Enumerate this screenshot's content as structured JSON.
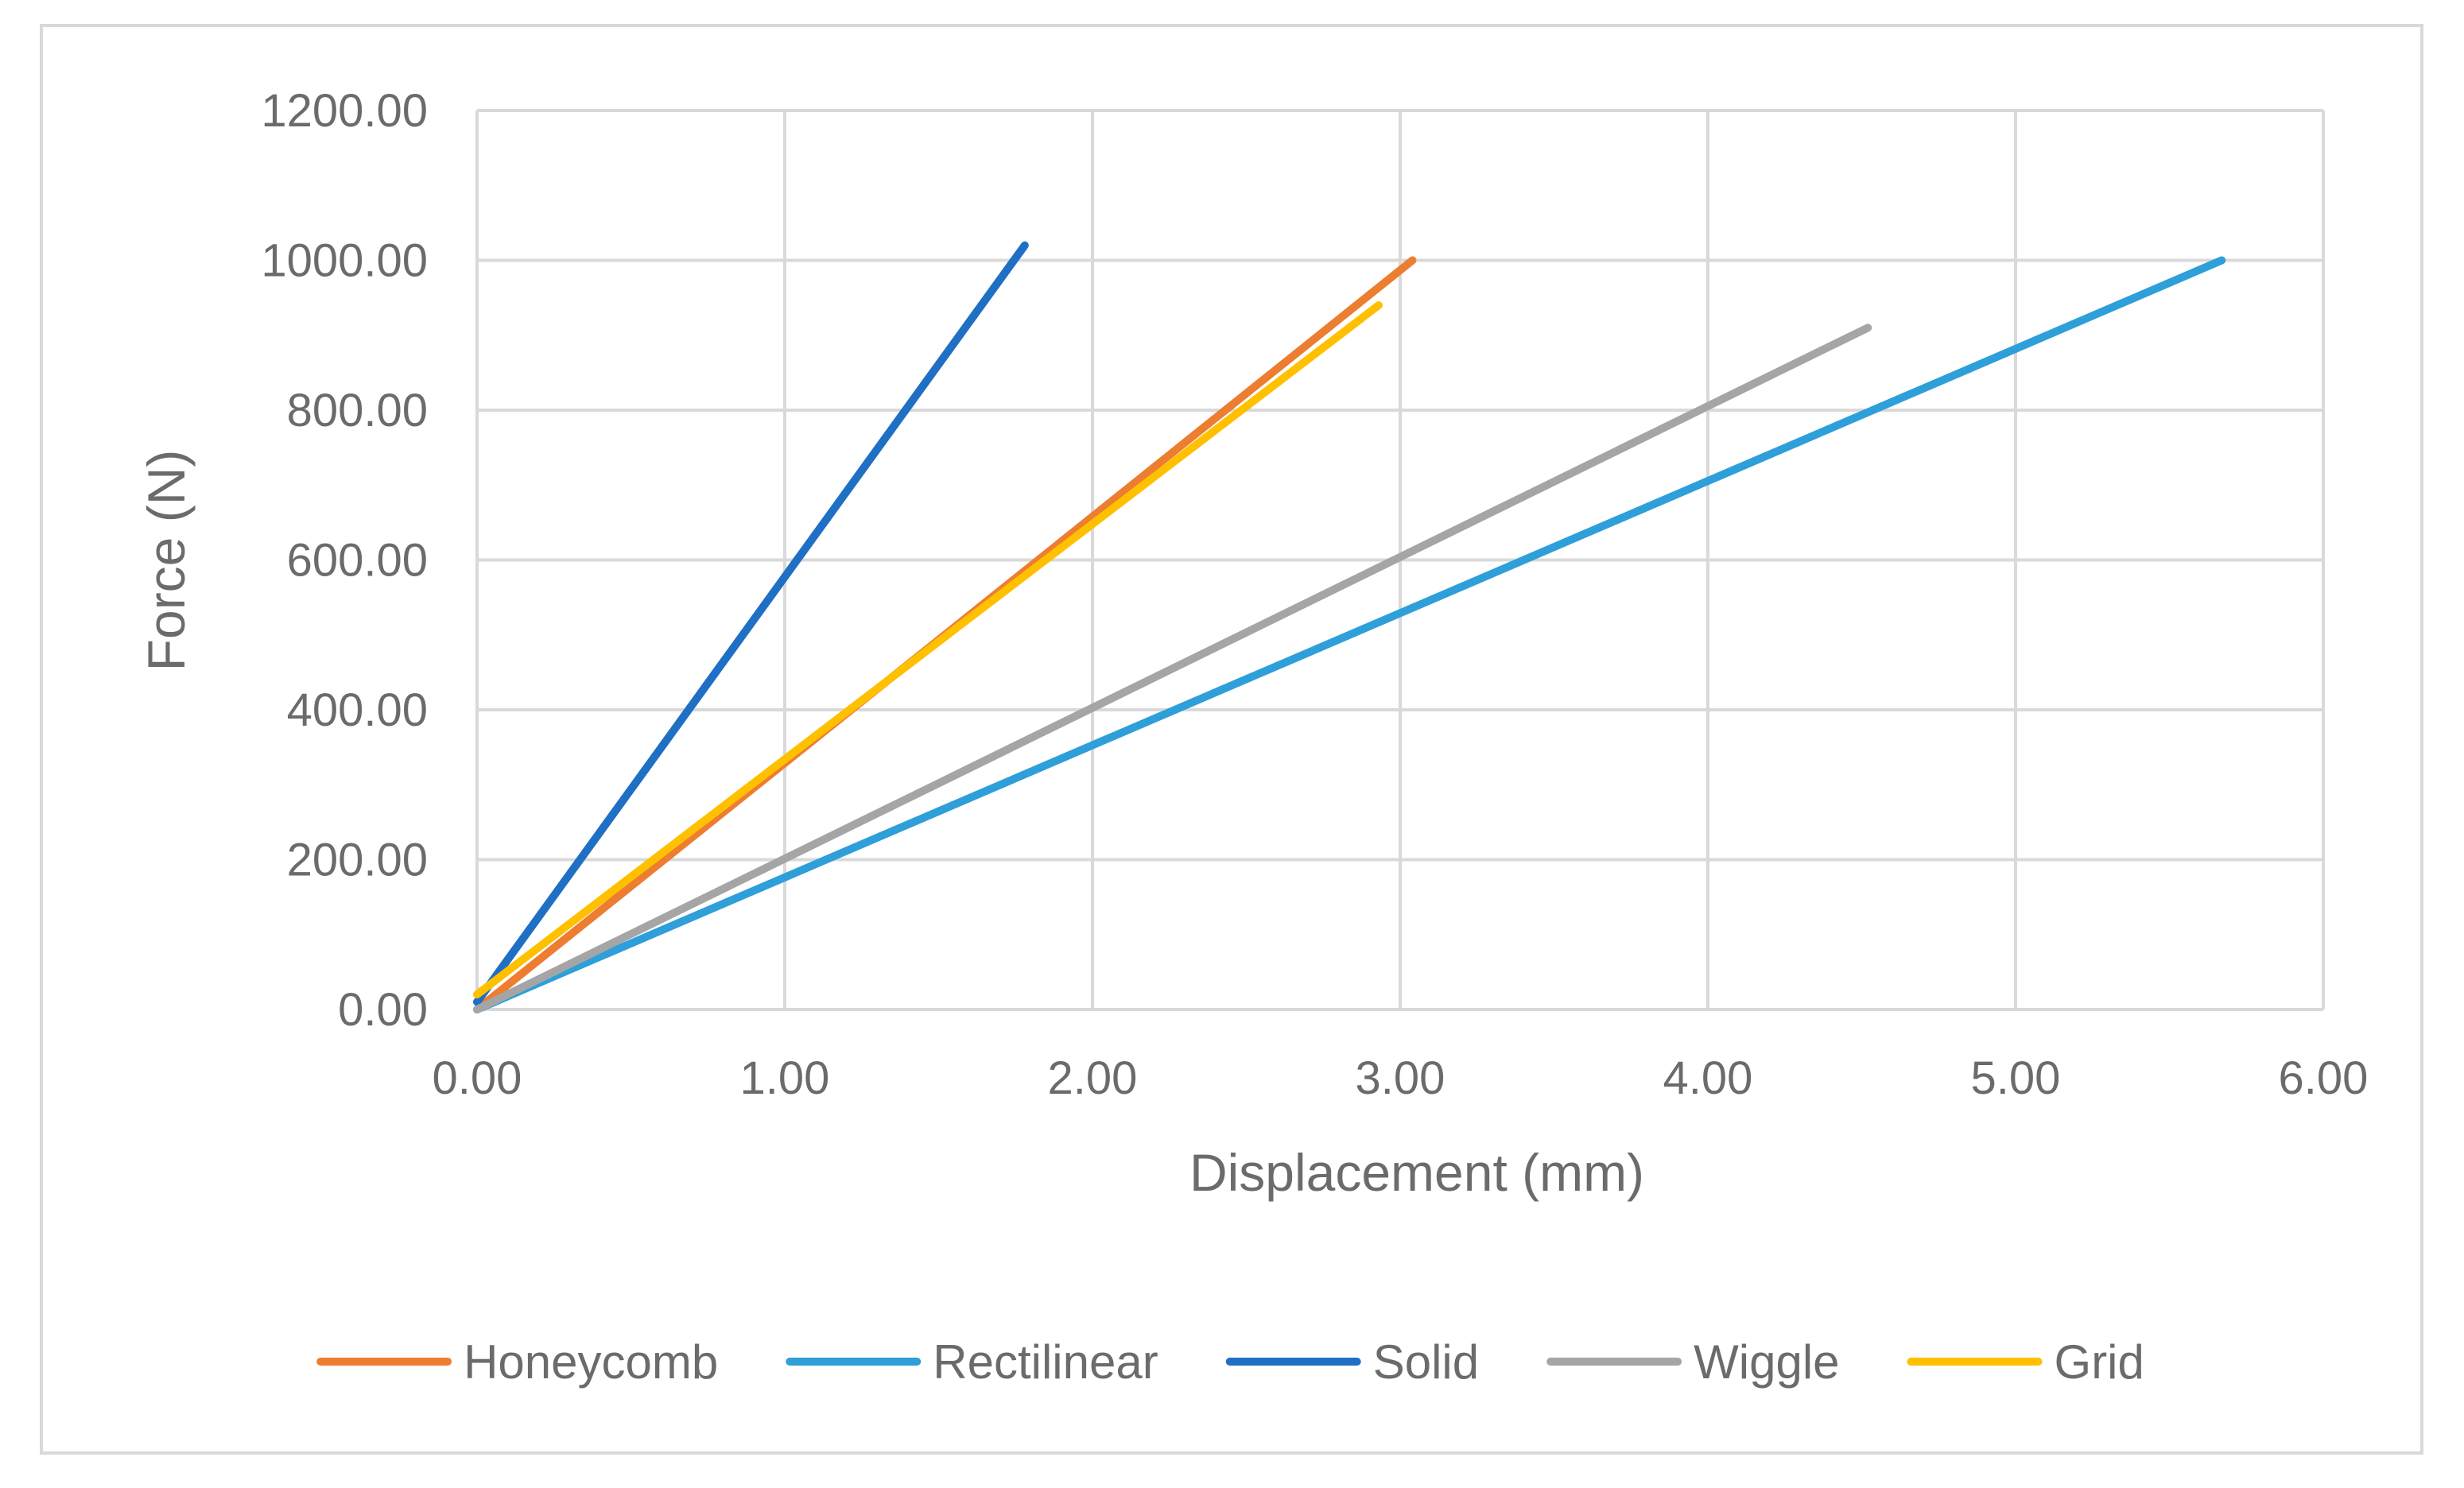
{
  "chart_data": {
    "type": "line",
    "xlabel": "Displacement (mm)",
    "ylabel": "Force (N)",
    "xlim": [
      0,
      6
    ],
    "ylim": [
      0,
      1200
    ],
    "x_ticks": [
      "0.00",
      "1.00",
      "2.00",
      "3.00",
      "4.00",
      "5.00",
      "6.00"
    ],
    "y_ticks": [
      "0.00",
      "200.00",
      "400.00",
      "600.00",
      "800.00",
      "1000.00",
      "1200.00"
    ],
    "grid": true,
    "legend_position": "bottom",
    "series": [
      {
        "name": "Honeycomb",
        "color": "#ED7D31",
        "x": [
          0.0,
          3.04
        ],
        "y": [
          0.0,
          1000.0
        ]
      },
      {
        "name": "Rectilinear",
        "color": "#2E9FD9",
        "x": [
          0.0,
          5.67
        ],
        "y": [
          0.0,
          1000.0
        ]
      },
      {
        "name": "Solid",
        "color": "#1F6FC5",
        "x": [
          0.0,
          1.78
        ],
        "y": [
          10.0,
          1020.0
        ]
      },
      {
        "name": "Wiggle",
        "color": "#A5A5A5",
        "x": [
          0.0,
          4.52
        ],
        "y": [
          0.0,
          910.0
        ]
      },
      {
        "name": "Grid",
        "color": "#FFC000",
        "x": [
          0.0,
          2.93
        ],
        "y": [
          20.0,
          940.0
        ]
      }
    ]
  }
}
